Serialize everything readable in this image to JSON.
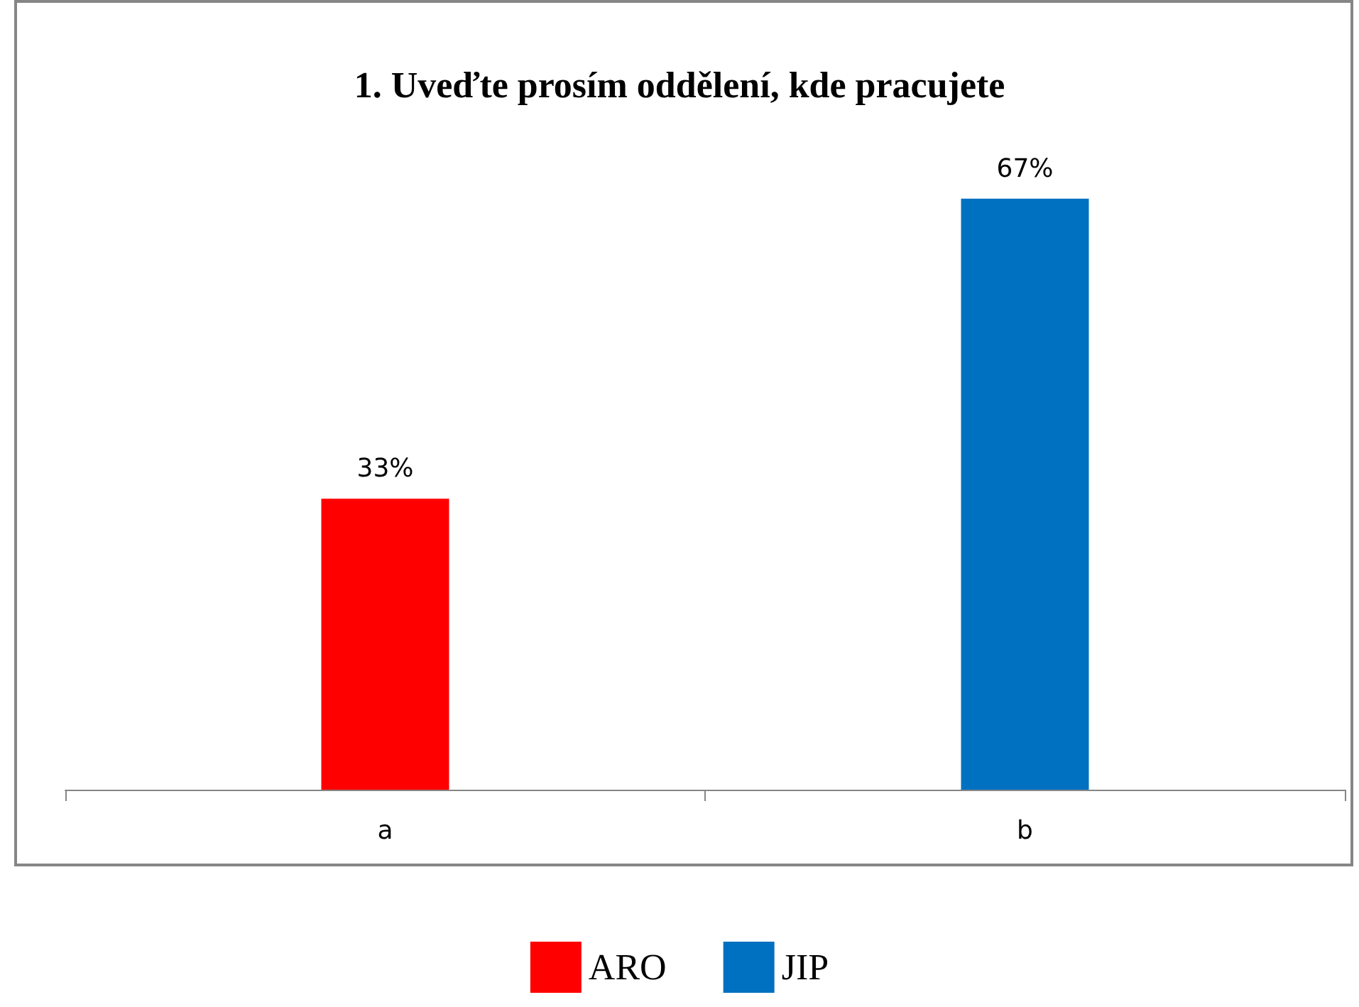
{
  "chart_data": {
    "type": "bar",
    "title": "1. Uveďte prosím oddělení, kde pracujete",
    "categories": [
      "a",
      "b"
    ],
    "series": [
      {
        "name": "ARO",
        "color": "#ff0000",
        "values": [
          33,
          null
        ],
        "value_labels": [
          "33%",
          null
        ]
      },
      {
        "name": "JIP",
        "color": "#0070c0",
        "values": [
          null,
          67
        ],
        "value_labels": [
          null,
          "67%"
        ]
      }
    ],
    "legend": "bottom"
  }
}
